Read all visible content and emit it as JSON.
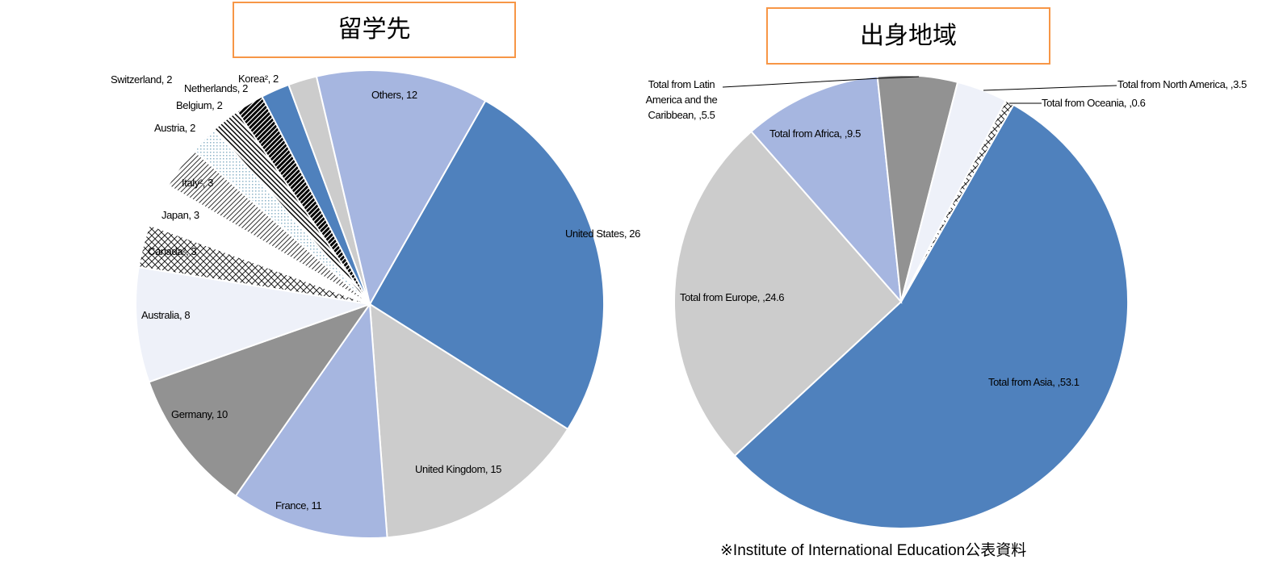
{
  "chart_data": [
    {
      "type": "pie",
      "title": "留学先",
      "value_labels": [
        "United States, 26",
        "United Kingdom, 15",
        "France, 11",
        "Germany, 10",
        "Australia, 8",
        "Canada², 3",
        "Japan, 3",
        "Italy², 3",
        "Austria, 2",
        "Belgium, 2",
        "Netherlands, 2",
        "Korea², 2",
        "Switzerland, 2",
        "Others, 12"
      ],
      "values": [
        26,
        15,
        11,
        10,
        8,
        3,
        3,
        3,
        2,
        2,
        2,
        2,
        2,
        12
      ],
      "colors": [
        "#4f81bd",
        "#cccccc",
        "#a6b6e0",
        "#929292",
        "#eef1f9",
        "url(#p-cross)",
        "#ffffff",
        "url(#p-diag)",
        "url(#p-dots)",
        "url(#p-bdiag)",
        "url(#p-thick)",
        "#4f81bd",
        "#cccccc",
        "#a6b6e0"
      ]
    },
    {
      "type": "pie",
      "title": "出身地域",
      "value_labels": [
        "Total from Asia, ,53.1",
        "Total from Europe, ,24.6",
        "Total from Africa, ,9.5",
        "Total from Latin America and the Caribbean, ,5.5",
        "Total from North America, ,3.5",
        "Total from Oceania, ,0.6"
      ],
      "values": [
        53.1,
        24.6,
        9.5,
        5.5,
        3.5,
        0.6
      ],
      "colors": [
        "#4f81bd",
        "#cccccc",
        "#a6b6e0",
        "#929292",
        "#eef1f9",
        "url(#p-cross)"
      ],
      "note": "※Institute  of International Education公表資料"
    }
  ]
}
